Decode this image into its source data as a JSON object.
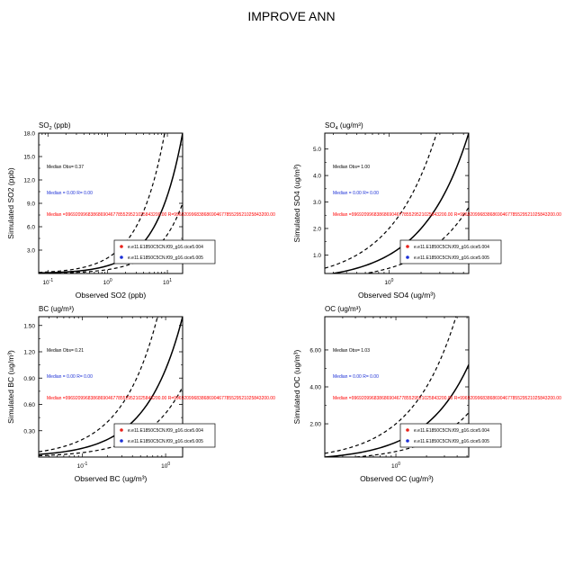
{
  "title": "IMPROVE ANN",
  "colors": {
    "model1": "#e8231c",
    "model2": "#1b2fd6",
    "median2": "#1b2fd6",
    "median1": "#ff0000"
  },
  "chart_data": [
    {
      "type": "scatter",
      "panel_title": "SO",
      "panel_title_sub": "2",
      "panel_title_rest": " (ppb)",
      "xlabel": "Observed SO2 (ppb)",
      "ylabel": "Simulated SO2 (ppb)",
      "x_scale": "log",
      "y_scale": "linear",
      "xlim": [
        0.07,
        18
      ],
      "ylim": [
        0,
        18
      ],
      "yticks": [
        "18.0",
        "15.0",
        "12.0",
        "9.0",
        "6.0",
        "3.0"
      ],
      "ytick_values": [
        18,
        15,
        12,
        9,
        6,
        3
      ],
      "xticks": [
        {
          "base": "10",
          "exp": "-1",
          "value": 0.1
        },
        {
          "base": "10",
          "exp": "0",
          "value": 1
        },
        {
          "base": "10",
          "exp": "1",
          "value": 10
        }
      ],
      "annotations": {
        "median_obs": "Median Obs= 0.37",
        "median_blue": "Median = 0.00 R= 0.00",
        "median_red": "Median =99692099683868690467785529521025843200.00 R=99692099683868690467785529521025843200.00"
      },
      "legend": [
        "e.e11.E1850C5CN.f09_g16.cice5.004",
        "e.e11.E1850C5CN.f09_g16.cice5.005"
      ],
      "reference_lines": [
        "1:1",
        "2:1",
        "1:2"
      ],
      "series": []
    },
    {
      "type": "scatter",
      "panel_title": "SO",
      "panel_title_sub": "4",
      "panel_title_rest": " (ug/m³)",
      "xlabel": "Observed SO4 (ug/m³)",
      "ylabel": "Simulated SO4 (ug/m³)",
      "x_scale": "log",
      "y_scale": "linear",
      "xlim": [
        0.25,
        5.6
      ],
      "ylim": [
        0.3,
        5.6
      ],
      "yticks": [
        "5.0",
        "4.0",
        "3.0",
        "2.0",
        "1.0"
      ],
      "ytick_values": [
        5,
        4,
        3,
        2,
        1
      ],
      "xticks": [
        {
          "base": "10",
          "exp": "0",
          "value": 1
        }
      ],
      "annotations": {
        "median_obs": "Median Obs= 1.00",
        "median_blue": "Median = 0.00 R= 0.00",
        "median_red": "Median =99692099683868690467785529521025843200.00 R=99692099683868690467785529521025843200.00"
      },
      "legend": [
        "e.e11.E1850C5CN.f09_g16.cice5.004",
        "e.e11.E1850C5CN.f09_g16.cice5.005"
      ],
      "reference_lines": [
        "1:1",
        "2:1",
        "1:2"
      ],
      "series": []
    },
    {
      "type": "scatter",
      "panel_title": "BC (ug/m³)",
      "panel_title_sub": "",
      "panel_title_rest": "",
      "xlabel": "Observed BC (ug/m³)",
      "ylabel": "Simulated BC (ug/m³)",
      "x_scale": "log",
      "y_scale": "linear",
      "xlim": [
        0.03,
        1.6
      ],
      "ylim": [
        0,
        1.6
      ],
      "yticks": [
        "1.50",
        "1.20",
        "0.90",
        "0.60",
        "0.30"
      ],
      "ytick_values": [
        1.5,
        1.2,
        0.9,
        0.6,
        0.3
      ],
      "xticks": [
        {
          "base": "10",
          "exp": "-1",
          "value": 0.1
        },
        {
          "base": "10",
          "exp": "0",
          "value": 1
        }
      ],
      "annotations": {
        "median_obs": "Median Obs= 0.21",
        "median_blue": "Median = 0.00 R= 0.00",
        "median_red": "Median =99692099683868690467785529521025843200.00 R=99692099683868690467785529521025843200.00"
      },
      "legend": [
        "e.e11.E1850C5CN.f09_g16.cice5.004",
        "e.e11.E1850C5CN.f09_g16.cice5.005"
      ],
      "reference_lines": [
        "1:1",
        "2:1",
        "1:2"
      ],
      "series": []
    },
    {
      "type": "scatter",
      "panel_title": "OC (ug/m³)",
      "panel_title_sub": "",
      "panel_title_rest": "",
      "xlabel": "Observed OC (ug/m³)",
      "ylabel": "Simulated OC (ug/m³)",
      "x_scale": "log",
      "y_scale": "linear",
      "xlim": [
        0.2,
        5.2
      ],
      "ylim": [
        0.2,
        7.8
      ],
      "yticks": [
        "6.00",
        "4.00",
        "2.00"
      ],
      "ytick_values": [
        6,
        4,
        2
      ],
      "xticks": [
        {
          "base": "10",
          "exp": "0",
          "value": 1
        }
      ],
      "annotations": {
        "median_obs": "Median Obs= 1.03",
        "median_blue": "Median = 0.00 R= 0.00",
        "median_red": "Median =99692099683868690467785529521025843200.00 R=99692099683868690467785529521025843200.00"
      },
      "legend": [
        "e.e11.E1850C5CN.f09_g16.cice5.004",
        "e.e11.E1850C5CN.f09_g16.cice5.005"
      ],
      "reference_lines": [
        "1:1",
        "2:1",
        "1:2"
      ],
      "series": []
    }
  ]
}
